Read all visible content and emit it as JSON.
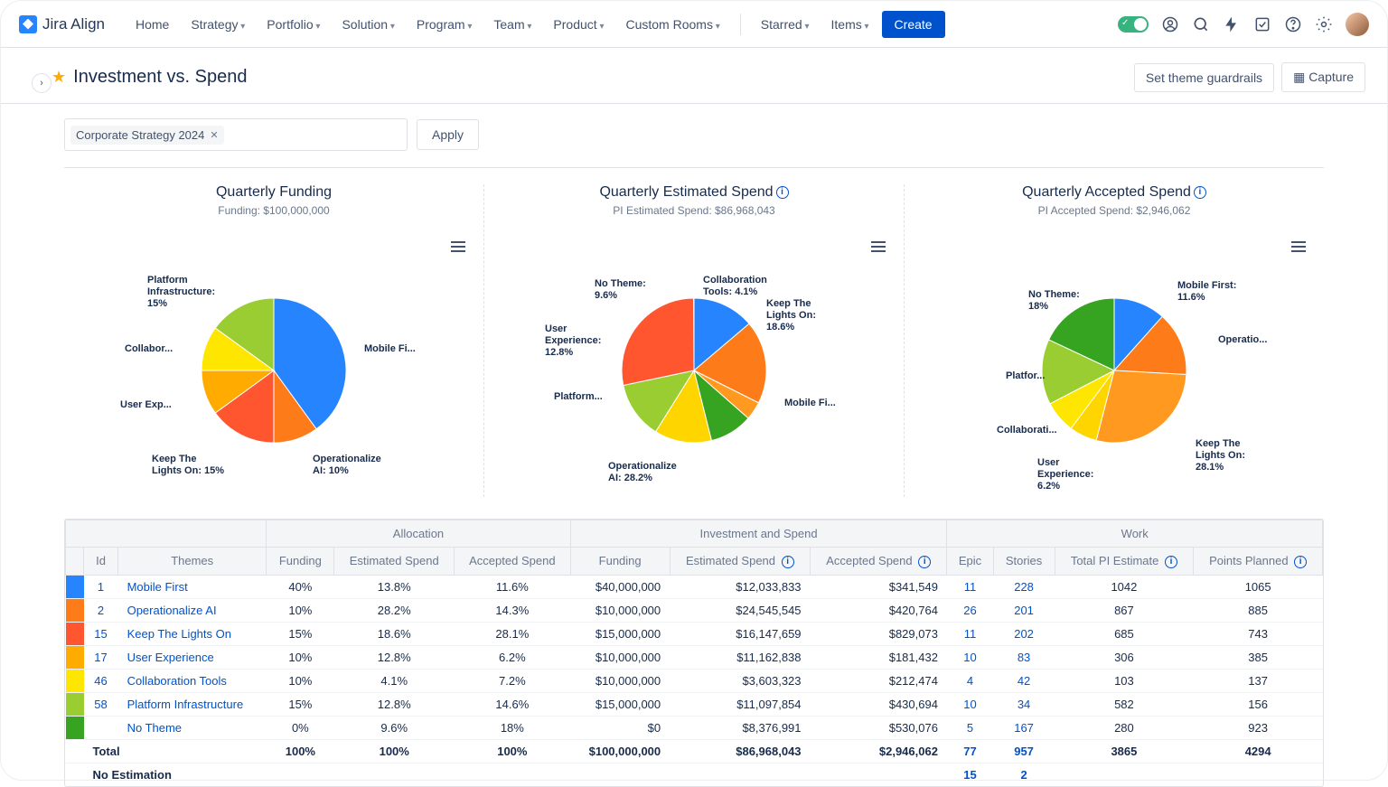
{
  "nav": {
    "logo": "Jira Align",
    "items": [
      "Home",
      "Strategy",
      "Portfolio",
      "Solution",
      "Program",
      "Team",
      "Product",
      "Custom Rooms"
    ],
    "dropdown": [
      false,
      true,
      true,
      true,
      true,
      true,
      true,
      true
    ],
    "right": [
      "Starred",
      "Items"
    ],
    "create": "Create"
  },
  "page": {
    "title": "Investment vs. Spend",
    "guardrails_btn": "Set theme guardrails",
    "capture_btn": "Capture",
    "filter_chip": "Corporate Strategy 2024",
    "apply": "Apply"
  },
  "charts": [
    {
      "title": "Quarterly Funding",
      "subtitle": "Funding: $100,000,000",
      "info": false,
      "slices": [
        {
          "label": "Mobile Fi...",
          "pct": 40,
          "color": "#2684ff",
          "lblx": 320,
          "lbly": 110
        },
        {
          "label": "Operationalize\nAI: 10%",
          "pct": 10,
          "color": "#fe7b1a",
          "lblx": 263,
          "lbly": 232
        },
        {
          "label": "Keep The\nLights On: 15%",
          "pct": 15,
          "color": "#ff5630",
          "lblx": 85,
          "lbly": 232
        },
        {
          "label": "User Exp...",
          "pct": 10,
          "color": "#ffab00",
          "lblx": 50,
          "lbly": 172
        },
        {
          "label": "Collabor...",
          "pct": 10,
          "color": "#ffe600",
          "lblx": 55,
          "lbly": 110
        },
        {
          "label": "Platform\nInfrastructure:\n15%",
          "pct": 15,
          "color": "#9acd32",
          "lblx": 80,
          "lbly": 34
        }
      ]
    },
    {
      "title": "Quarterly Estimated Spend",
      "subtitle": "PI Estimated Spend: $86,968,043",
      "info": true,
      "slices": [
        {
          "label": "Mobile Fi...",
          "pct": 13.8,
          "color": "#2684ff",
          "lblx": 320,
          "lbly": 170
        },
        {
          "label": "Keep The\nLights On:\n18.6%",
          "pct": 18.6,
          "color": "#fe7b1a",
          "lblx": 300,
          "lbly": 60
        },
        {
          "label": "Collaboration\nTools: 4.1%",
          "pct": 4.1,
          "color": "#ff991f",
          "lblx": 230,
          "lbly": 34
        },
        {
          "label": "No Theme:\n9.6%",
          "pct": 9.6,
          "color": "#36a420",
          "lblx": 110,
          "lbly": 38
        },
        {
          "label": "User\nExperience:\n12.8%",
          "pct": 12.8,
          "color": "#ffd500",
          "lblx": 55,
          "lbly": 88
        },
        {
          "label": "Platform...",
          "pct": 12.8,
          "color": "#9acd32",
          "lblx": 65,
          "lbly": 163
        },
        {
          "label": "Operationalize\nAI: 28.2%",
          "pct": 28.2,
          "color": "#ff5630",
          "lblx": 125,
          "lbly": 240
        }
      ]
    },
    {
      "title": "Quarterly Accepted Spend",
      "subtitle": "PI Accepted Spend: $2,946,062",
      "info": true,
      "slices": [
        {
          "label": "Mobile First:\n11.6%",
          "pct": 11.6,
          "color": "#2684ff",
          "lblx": 290,
          "lbly": 40
        },
        {
          "label": "Operatio...",
          "pct": 14.3,
          "color": "#fe7b1a",
          "lblx": 335,
          "lbly": 100
        },
        {
          "label": "Keep The\nLights On:\n28.1%",
          "pct": 28.1,
          "color": "#ff991f",
          "lblx": 310,
          "lbly": 215
        },
        {
          "label": "User\nExperience:\n6.2%",
          "pct": 6.2,
          "color": "#ffd500",
          "lblx": 135,
          "lbly": 236
        },
        {
          "label": "Collaborati...",
          "pct": 7.2,
          "color": "#ffe600",
          "lblx": 90,
          "lbly": 200
        },
        {
          "label": "Platfor...",
          "pct": 14.6,
          "color": "#9acd32",
          "lblx": 100,
          "lbly": 140
        },
        {
          "label": "No Theme:\n18%",
          "pct": 18,
          "color": "#36a420",
          "lblx": 125,
          "lbly": 50
        }
      ]
    }
  ],
  "table": {
    "groups": [
      "",
      "Allocation",
      "Investment and Spend",
      "Work"
    ],
    "headers": [
      "Id",
      "Themes",
      "Funding",
      "Estimated Spend",
      "Accepted Spend",
      "Funding",
      "Estimated Spend",
      "Accepted Spend",
      "Epic",
      "Stories",
      "Total PI Estimate",
      "Points Planned"
    ],
    "header_info": [
      false,
      false,
      false,
      false,
      false,
      false,
      true,
      true,
      false,
      false,
      true,
      true
    ],
    "rows": [
      {
        "color": "#2684ff",
        "id": "1",
        "theme": "Mobile First",
        "f": "40%",
        "es": "13.8%",
        "as": "11.6%",
        "fund": "$40,000,000",
        "espend": "$12,033,833",
        "aspend": "$341,549",
        "epic": "11",
        "stories": "228",
        "tpi": "1042",
        "pp": "1065"
      },
      {
        "color": "#fe7b1a",
        "id": "2",
        "theme": "Operationalize AI",
        "f": "10%",
        "es": "28.2%",
        "as": "14.3%",
        "fund": "$10,000,000",
        "espend": "$24,545,545",
        "aspend": "$420,764",
        "epic": "26",
        "stories": "201",
        "tpi": "867",
        "pp": "885"
      },
      {
        "color": "#ff5630",
        "id": "15",
        "theme": "Keep The Lights On",
        "f": "15%",
        "es": "18.6%",
        "as": "28.1%",
        "fund": "$15,000,000",
        "espend": "$16,147,659",
        "aspend": "$829,073",
        "epic": "11",
        "stories": "202",
        "tpi": "685",
        "pp": "743"
      },
      {
        "color": "#ffab00",
        "id": "17",
        "theme": "User Experience",
        "f": "10%",
        "es": "12.8%",
        "as": "6.2%",
        "fund": "$10,000,000",
        "espend": "$11,162,838",
        "aspend": "$181,432",
        "epic": "10",
        "stories": "83",
        "tpi": "306",
        "pp": "385"
      },
      {
        "color": "#ffe600",
        "id": "46",
        "theme": "Collaboration Tools",
        "f": "10%",
        "es": "4.1%",
        "as": "7.2%",
        "fund": "$10,000,000",
        "espend": "$3,603,323",
        "aspend": "$212,474",
        "epic": "4",
        "stories": "42",
        "tpi": "103",
        "pp": "137"
      },
      {
        "color": "#9acd32",
        "id": "58",
        "theme": "Platform Infrastructure",
        "f": "15%",
        "es": "12.8%",
        "as": "14.6%",
        "fund": "$15,000,000",
        "espend": "$11,097,854",
        "aspend": "$430,694",
        "epic": "10",
        "stories": "34",
        "tpi": "582",
        "pp": "156"
      },
      {
        "color": "#36a420",
        "id": "",
        "theme": "No Theme",
        "f": "0%",
        "es": "9.6%",
        "as": "18%",
        "fund": "$0",
        "espend": "$8,376,991",
        "aspend": "$530,076",
        "epic": "5",
        "stories": "167",
        "tpi": "280",
        "pp": "923"
      }
    ],
    "total": {
      "label": "Total",
      "f": "100%",
      "es": "100%",
      "as": "100%",
      "fund": "$100,000,000",
      "espend": "$86,968,043",
      "aspend": "$2,946,062",
      "epic": "77",
      "stories": "957",
      "tpi": "3865",
      "pp": "4294"
    },
    "noest": {
      "label": "No Estimation",
      "epic": "15",
      "stories": "2"
    }
  }
}
